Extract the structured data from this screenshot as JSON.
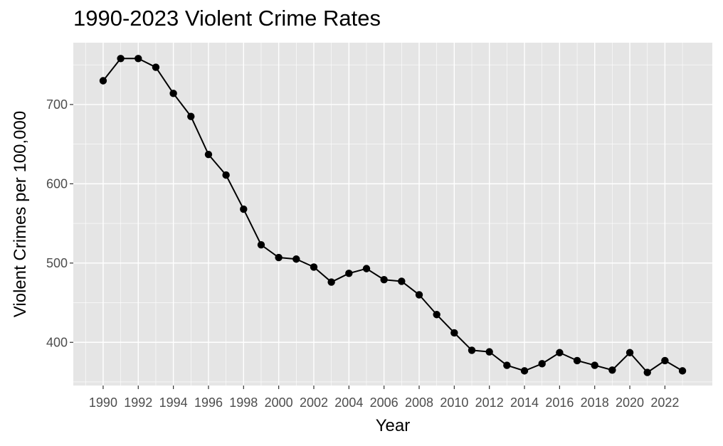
{
  "chart_data": {
    "type": "line",
    "title": "1990-2023 Violent Crime Rates",
    "xlabel": "Year",
    "ylabel": "Violent Crimes per 100,000",
    "x": [
      1990,
      1991,
      1992,
      1993,
      1994,
      1995,
      1996,
      1997,
      1998,
      1999,
      2000,
      2001,
      2002,
      2003,
      2004,
      2005,
      2006,
      2007,
      2008,
      2009,
      2010,
      2011,
      2012,
      2013,
      2014,
      2015,
      2016,
      2017,
      2018,
      2019,
      2020,
      2021,
      2022,
      2023
    ],
    "series": [
      {
        "values": [
          730,
          758,
          758,
          747,
          714,
          685,
          637,
          611,
          568,
          523,
          507,
          505,
          495,
          476,
          487,
          493,
          479,
          477,
          460,
          435,
          412,
          390,
          388,
          371,
          364,
          373,
          387,
          377,
          371,
          365,
          387,
          362,
          377,
          364
        ]
      }
    ],
    "xticks": [
      "1990",
      "1992",
      "1994",
      "1996",
      "1998",
      "2000",
      "2002",
      "2004",
      "2006",
      "2008",
      "2010",
      "2012",
      "2014",
      "2016",
      "2018",
      "2020",
      "2022"
    ],
    "yticks": [
      "400",
      "500",
      "600",
      "700"
    ],
    "xlim": [
      1988.3,
      2024.7
    ],
    "ylim": [
      345.5,
      778
    ],
    "grid": true,
    "legend": "none",
    "colors": {
      "panel": "#e5e5e5",
      "gridline": "#ffffff",
      "line": "#000000",
      "point": "#000000",
      "tick_text": "#4d4d4d"
    }
  }
}
